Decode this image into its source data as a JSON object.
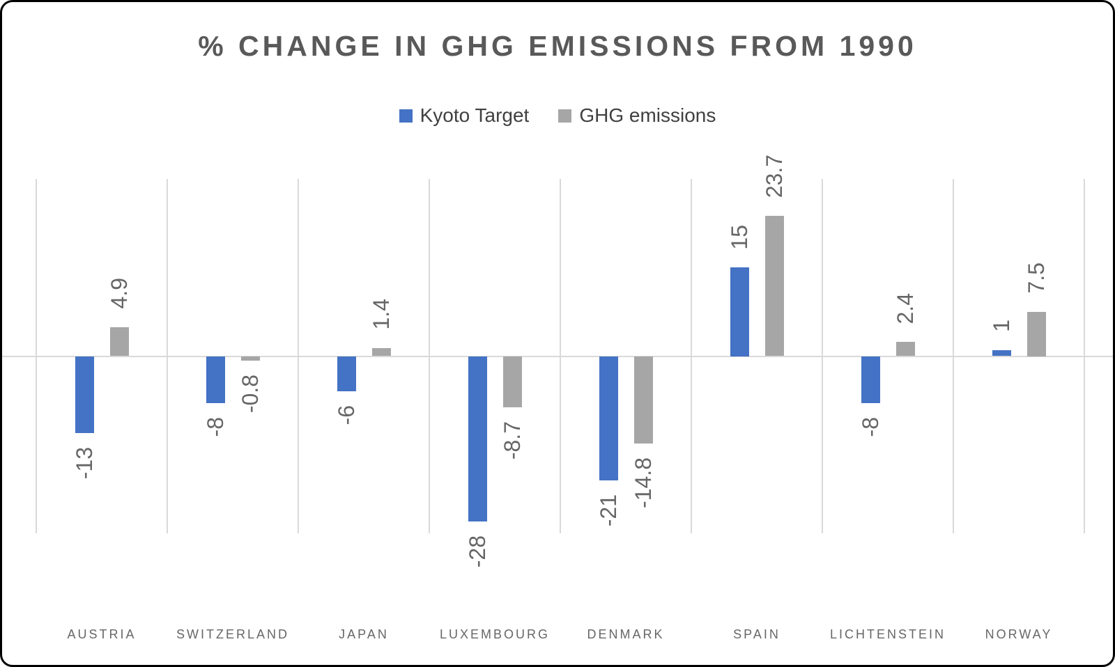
{
  "frame": {
    "background": "#ffffff",
    "border_color": "#000000"
  },
  "chart_data": {
    "type": "bar",
    "title": "% CHANGE IN GHG EMISSIONS FROM 1990",
    "categories": [
      "AUSTRIA",
      "SWITZERLAND",
      "JAPAN",
      "LUXEMBOURG",
      "DENMARK",
      "SPAIN",
      "LICHTENSTEIN",
      "NORWAY"
    ],
    "series": [
      {
        "name": "Kyoto Target",
        "color": "#4472C4",
        "values": [
          -13,
          -8,
          -6,
          -28,
          -21,
          15,
          -8,
          1
        ]
      },
      {
        "name": "GHG emissions",
        "color": "#A6A6A6",
        "values": [
          4.9,
          -0.8,
          1.4,
          -8.7,
          -14.8,
          23.7,
          2.4,
          7.5
        ]
      }
    ],
    "ylim": [
      -30,
      30
    ],
    "xlabel": "",
    "ylabel": "",
    "legend_position": "top-center",
    "grid": "vertical category separator lines + horizontal zero axis line only",
    "data_label_rotation": -90,
    "colors": {
      "gridline": "#D9D9D9",
      "zero_axis_line": "#D9D9D9",
      "title_text": "#595959",
      "legend_text": "#404040",
      "data_label_text": "#666666",
      "category_label_text": "#666666"
    }
  }
}
